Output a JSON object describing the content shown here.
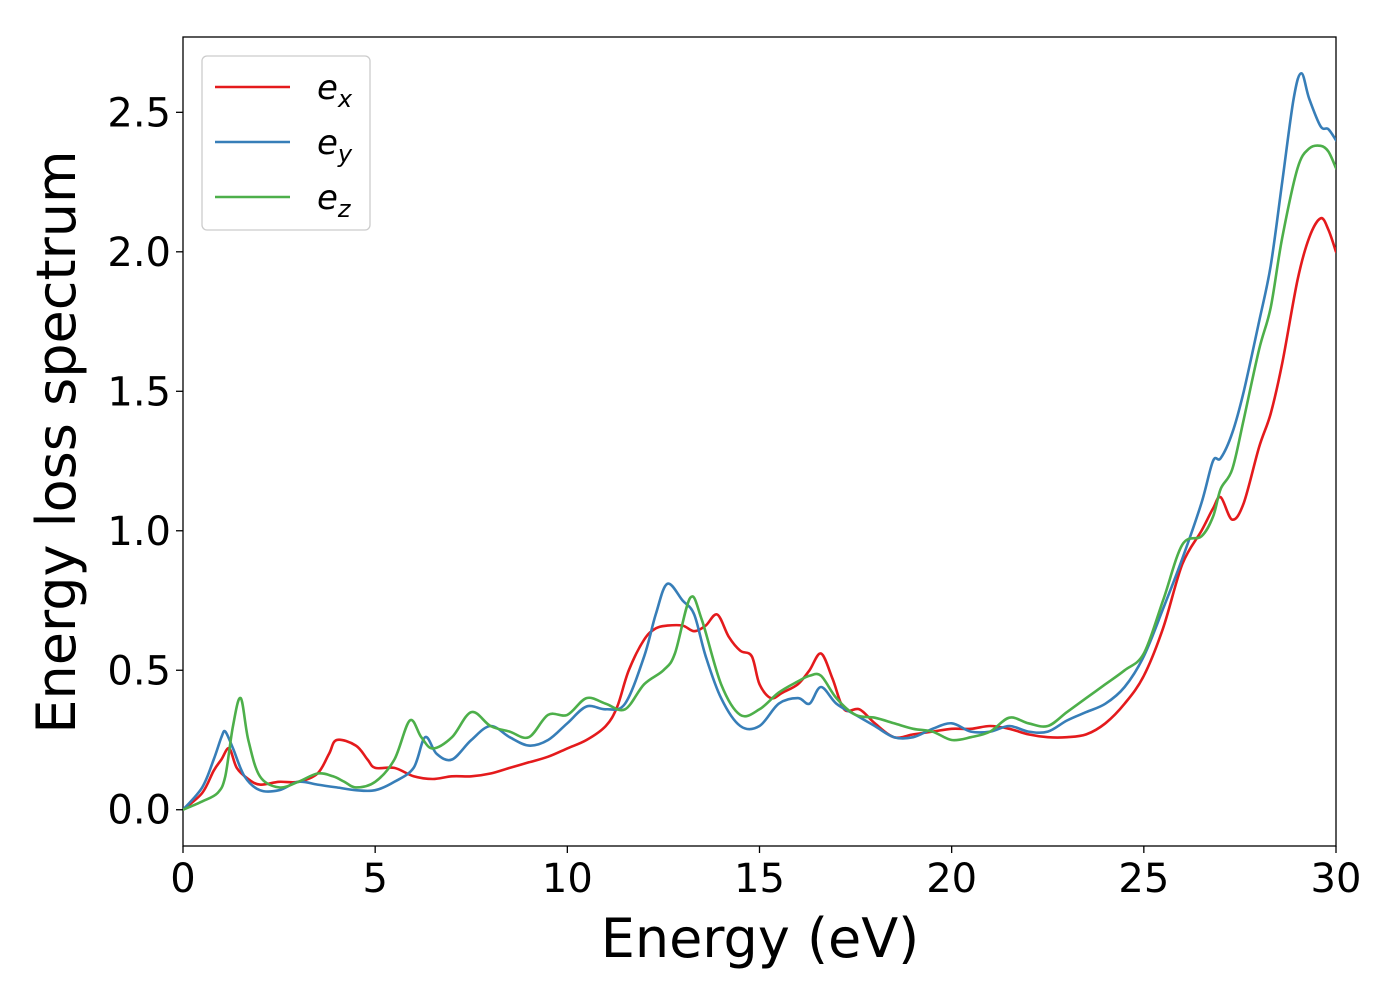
{
  "chart_data": {
    "type": "line",
    "title": "",
    "xlabel": "Energy (eV)",
    "ylabel": "Energy loss spectrum",
    "xlim": [
      0,
      30
    ],
    "ylim": [
      -0.13,
      2.77
    ],
    "xticks": [
      0,
      5,
      10,
      15,
      20,
      25,
      30
    ],
    "xtick_labels": [
      "0",
      "5",
      "10",
      "15",
      "20",
      "25",
      "30"
    ],
    "yticks": [
      0.0,
      0.5,
      1.0,
      1.5,
      2.0,
      2.5
    ],
    "ytick_labels": [
      "0.0",
      "0.5",
      "1.0",
      "1.5",
      "2.0",
      "2.5"
    ],
    "grid": false,
    "legend_position": "top-left",
    "series": [
      {
        "name": "ex",
        "name_base": "e",
        "name_sub": "x",
        "color": "#e41a1c",
        "x": [
          0,
          0.5,
          0.8,
          1.0,
          1.2,
          1.4,
          1.7,
          2.0,
          2.5,
          3.0,
          3.5,
          3.8,
          4.0,
          4.5,
          4.8,
          5.0,
          5.5,
          6.0,
          6.5,
          7.0,
          7.5,
          8.0,
          8.5,
          9.0,
          9.5,
          10.0,
          10.5,
          11.0,
          11.3,
          11.6,
          12.0,
          12.3,
          12.6,
          13.0,
          13.3,
          13.6,
          13.9,
          14.2,
          14.5,
          14.8,
          15.0,
          15.3,
          15.6,
          16.0,
          16.3,
          16.6,
          16.9,
          17.2,
          17.6,
          18.0,
          18.5,
          19.0,
          19.5,
          20.0,
          20.5,
          21.0,
          21.5,
          22.0,
          22.5,
          23.0,
          23.5,
          24.0,
          24.5,
          25.0,
          25.5,
          26.0,
          26.5,
          26.8,
          27.0,
          27.3,
          27.6,
          28.0,
          28.3,
          28.6,
          29.0,
          29.3,
          29.6,
          29.8,
          30.0
        ],
        "y": [
          0.0,
          0.06,
          0.14,
          0.18,
          0.22,
          0.15,
          0.11,
          0.09,
          0.1,
          0.1,
          0.13,
          0.2,
          0.25,
          0.23,
          0.18,
          0.15,
          0.15,
          0.12,
          0.11,
          0.12,
          0.12,
          0.13,
          0.15,
          0.17,
          0.19,
          0.22,
          0.25,
          0.3,
          0.37,
          0.5,
          0.61,
          0.65,
          0.66,
          0.66,
          0.64,
          0.66,
          0.7,
          0.62,
          0.57,
          0.55,
          0.45,
          0.4,
          0.42,
          0.45,
          0.5,
          0.56,
          0.47,
          0.36,
          0.36,
          0.31,
          0.26,
          0.27,
          0.28,
          0.29,
          0.29,
          0.3,
          0.29,
          0.27,
          0.26,
          0.26,
          0.27,
          0.31,
          0.38,
          0.48,
          0.65,
          0.88,
          1.0,
          1.08,
          1.12,
          1.04,
          1.1,
          1.3,
          1.42,
          1.6,
          1.9,
          2.05,
          2.12,
          2.08,
          2.0
        ]
      },
      {
        "name": "ey",
        "name_base": "e",
        "name_sub": "y",
        "color": "#377eb8",
        "x": [
          0,
          0.5,
          0.8,
          1.0,
          1.1,
          1.3,
          1.6,
          2.0,
          2.5,
          3.0,
          3.5,
          4.0,
          4.5,
          5.0,
          5.5,
          6.0,
          6.3,
          6.6,
          7.0,
          7.5,
          8.0,
          8.5,
          9.0,
          9.5,
          10.0,
          10.5,
          11.0,
          11.5,
          12.0,
          12.3,
          12.6,
          13.0,
          13.3,
          13.6,
          14.0,
          14.5,
          15.0,
          15.5,
          16.0,
          16.3,
          16.6,
          17.0,
          17.5,
          18.0,
          18.5,
          19.0,
          19.5,
          20.0,
          20.5,
          21.0,
          21.5,
          22.0,
          22.5,
          23.0,
          23.5,
          24.0,
          24.5,
          25.0,
          25.5,
          26.0,
          26.5,
          26.8,
          27.0,
          27.3,
          27.6,
          28.0,
          28.3,
          28.6,
          28.9,
          29.1,
          29.3,
          29.6,
          29.8,
          30.0
        ],
        "y": [
          0.0,
          0.08,
          0.18,
          0.26,
          0.28,
          0.22,
          0.12,
          0.07,
          0.07,
          0.1,
          0.09,
          0.08,
          0.07,
          0.07,
          0.1,
          0.15,
          0.26,
          0.2,
          0.18,
          0.25,
          0.3,
          0.26,
          0.23,
          0.25,
          0.31,
          0.37,
          0.36,
          0.38,
          0.55,
          0.7,
          0.81,
          0.75,
          0.7,
          0.55,
          0.4,
          0.3,
          0.3,
          0.38,
          0.4,
          0.38,
          0.44,
          0.38,
          0.34,
          0.3,
          0.26,
          0.26,
          0.29,
          0.31,
          0.28,
          0.28,
          0.3,
          0.28,
          0.28,
          0.32,
          0.35,
          0.38,
          0.44,
          0.55,
          0.72,
          0.9,
          1.1,
          1.25,
          1.26,
          1.35,
          1.5,
          1.75,
          1.95,
          2.25,
          2.55,
          2.64,
          2.55,
          2.45,
          2.44,
          2.4
        ]
      },
      {
        "name": "ez",
        "name_base": "e",
        "name_sub": "z",
        "color": "#4daf4a",
        "x": [
          0,
          0.5,
          0.9,
          1.1,
          1.3,
          1.5,
          1.7,
          2.0,
          2.5,
          3.0,
          3.5,
          3.9,
          4.2,
          4.5,
          5.0,
          5.5,
          5.9,
          6.2,
          6.5,
          7.0,
          7.5,
          8.0,
          8.5,
          9.0,
          9.5,
          10.0,
          10.5,
          11.0,
          11.5,
          12.0,
          12.5,
          12.8,
          13.2,
          13.5,
          14.0,
          14.5,
          15.0,
          15.5,
          16.0,
          16.3,
          16.6,
          17.0,
          17.5,
          18.0,
          18.5,
          19.0,
          19.5,
          20.0,
          20.5,
          21.0,
          21.5,
          22.0,
          22.5,
          23.0,
          23.5,
          24.0,
          24.5,
          25.0,
          25.5,
          26.0,
          26.5,
          26.8,
          27.0,
          27.3,
          27.6,
          28.0,
          28.3,
          28.6,
          29.0,
          29.3,
          29.6,
          29.8,
          30.0
        ],
        "y": [
          0.0,
          0.03,
          0.06,
          0.12,
          0.3,
          0.4,
          0.25,
          0.12,
          0.08,
          0.1,
          0.13,
          0.12,
          0.1,
          0.08,
          0.1,
          0.18,
          0.32,
          0.26,
          0.22,
          0.26,
          0.35,
          0.3,
          0.28,
          0.26,
          0.34,
          0.34,
          0.4,
          0.38,
          0.36,
          0.45,
          0.5,
          0.56,
          0.76,
          0.68,
          0.45,
          0.34,
          0.36,
          0.42,
          0.46,
          0.48,
          0.48,
          0.4,
          0.34,
          0.33,
          0.31,
          0.29,
          0.28,
          0.25,
          0.26,
          0.28,
          0.33,
          0.31,
          0.3,
          0.35,
          0.4,
          0.45,
          0.5,
          0.56,
          0.75,
          0.95,
          0.98,
          1.05,
          1.15,
          1.22,
          1.4,
          1.65,
          1.8,
          2.05,
          2.3,
          2.37,
          2.38,
          2.36,
          2.3
        ]
      }
    ]
  }
}
